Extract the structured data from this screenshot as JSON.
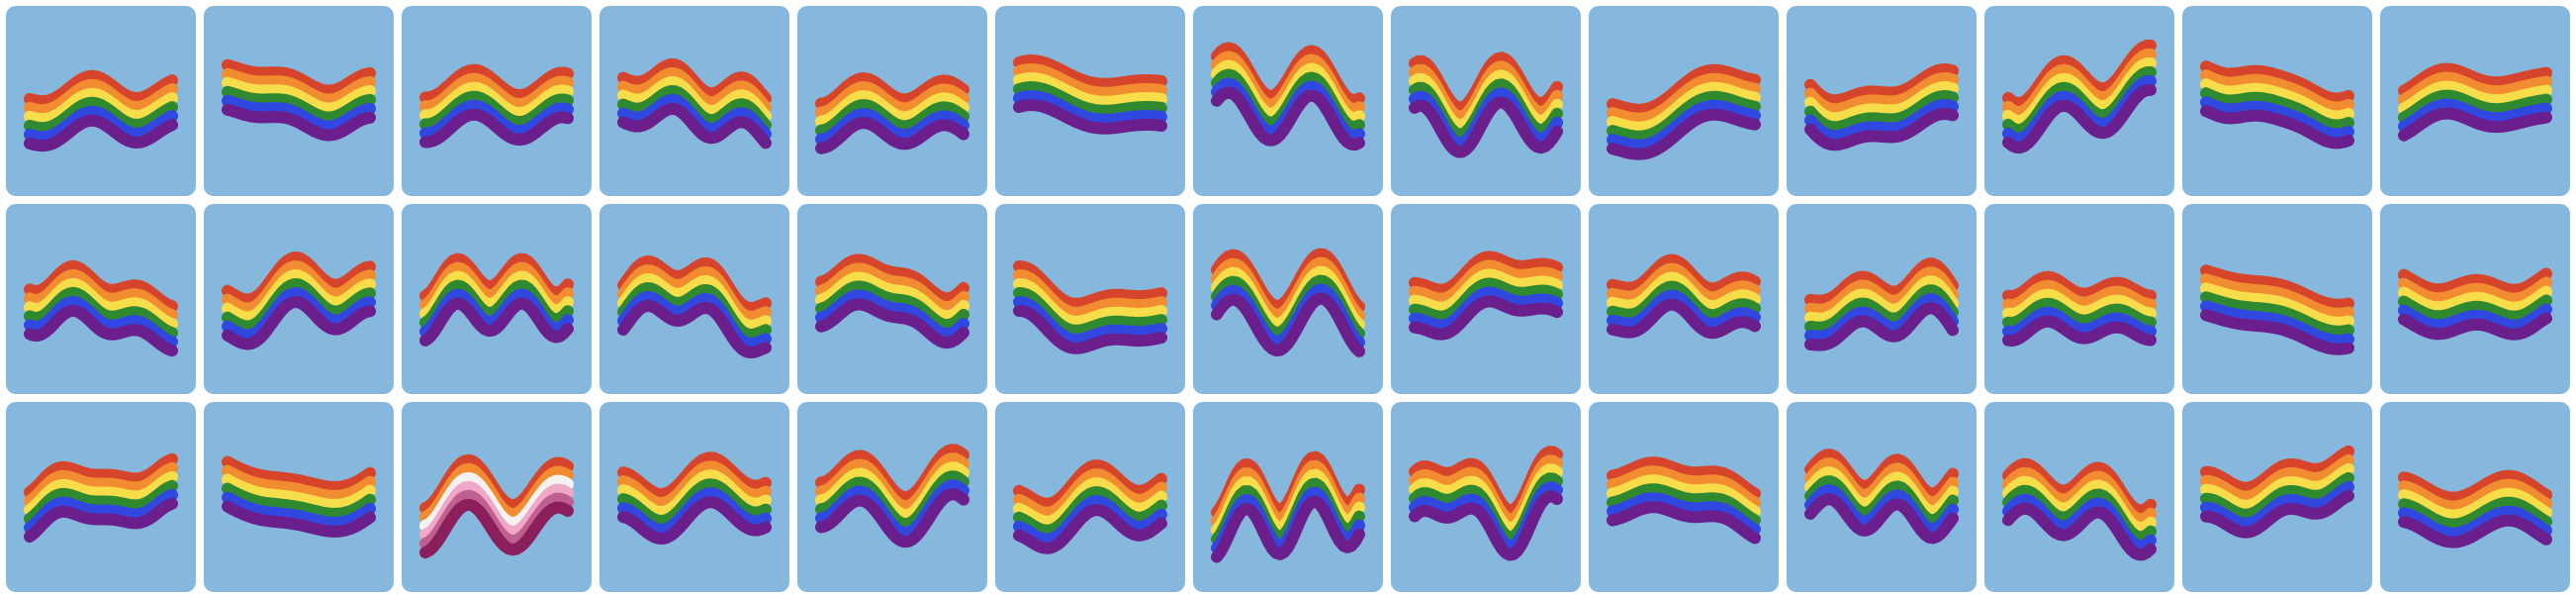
{
  "grid": {
    "rows": 3,
    "cols": 13
  },
  "colors": {
    "tile_bg": "#86b8dd",
    "page_bg": "#ffffff",
    "rainbow": [
      "#d7442c",
      "#f28c30",
      "#f8dd4a",
      "#2f8a2f",
      "#3047e0",
      "#6a1f8c"
    ],
    "pastel": [
      "#d7442c",
      "#f28c30",
      "#f7f2f2",
      "#f0a8c8",
      "#c06090",
      "#8a1f5c"
    ]
  },
  "tiles": [
    {
      "name": "wave-r1-c1",
      "seed": 11,
      "palette": "rainbow"
    },
    {
      "name": "wave-r1-c2",
      "seed": 23,
      "palette": "rainbow"
    },
    {
      "name": "wave-r1-c3",
      "seed": 37,
      "palette": "rainbow"
    },
    {
      "name": "wave-r1-c4",
      "seed": 41,
      "palette": "rainbow"
    },
    {
      "name": "wave-r1-c5",
      "seed": 53,
      "palette": "rainbow"
    },
    {
      "name": "wave-r1-c6",
      "seed": 67,
      "palette": "rainbow"
    },
    {
      "name": "wave-r1-c7",
      "seed": 71,
      "palette": "rainbow"
    },
    {
      "name": "wave-r1-c8",
      "seed": 83,
      "palette": "rainbow"
    },
    {
      "name": "wave-r1-c9",
      "seed": 97,
      "palette": "rainbow"
    },
    {
      "name": "wave-r1-c10",
      "seed": 101,
      "palette": "rainbow"
    },
    {
      "name": "wave-r1-c11",
      "seed": 113,
      "palette": "rainbow"
    },
    {
      "name": "wave-r1-c12",
      "seed": 127,
      "palette": "rainbow"
    },
    {
      "name": "wave-r1-c13",
      "seed": 131,
      "palette": "rainbow"
    },
    {
      "name": "wave-r2-c1",
      "seed": 139,
      "palette": "rainbow"
    },
    {
      "name": "wave-r2-c2",
      "seed": 149,
      "palette": "rainbow"
    },
    {
      "name": "wave-r2-c3",
      "seed": 151,
      "palette": "rainbow"
    },
    {
      "name": "wave-r2-c4",
      "seed": 163,
      "palette": "rainbow"
    },
    {
      "name": "wave-r2-c5",
      "seed": 173,
      "palette": "rainbow"
    },
    {
      "name": "wave-r2-c6",
      "seed": 181,
      "palette": "rainbow"
    },
    {
      "name": "wave-r2-c7",
      "seed": 191,
      "palette": "rainbow"
    },
    {
      "name": "wave-r2-c8",
      "seed": 199,
      "palette": "rainbow"
    },
    {
      "name": "wave-r2-c9",
      "seed": 211,
      "palette": "rainbow"
    },
    {
      "name": "wave-r2-c10",
      "seed": 223,
      "palette": "rainbow"
    },
    {
      "name": "wave-r2-c11",
      "seed": 227,
      "palette": "rainbow"
    },
    {
      "name": "wave-r2-c12",
      "seed": 229,
      "palette": "rainbow"
    },
    {
      "name": "wave-r2-c13",
      "seed": 233,
      "palette": "rainbow"
    },
    {
      "name": "wave-r3-c1",
      "seed": 239,
      "palette": "rainbow"
    },
    {
      "name": "wave-r3-c2",
      "seed": 241,
      "palette": "rainbow"
    },
    {
      "name": "wave-r3-c3",
      "seed": 251,
      "palette": "pastel"
    },
    {
      "name": "wave-r3-c4",
      "seed": 257,
      "palette": "rainbow"
    },
    {
      "name": "wave-r3-c5",
      "seed": 263,
      "palette": "rainbow"
    },
    {
      "name": "wave-r3-c6",
      "seed": 269,
      "palette": "rainbow"
    },
    {
      "name": "wave-r3-c7",
      "seed": 271,
      "palette": "rainbow"
    },
    {
      "name": "wave-r3-c8",
      "seed": 277,
      "palette": "rainbow"
    },
    {
      "name": "wave-r3-c9",
      "seed": 281,
      "palette": "rainbow"
    },
    {
      "name": "wave-r3-c10",
      "seed": 283,
      "palette": "rainbow"
    },
    {
      "name": "wave-r3-c11",
      "seed": 293,
      "palette": "rainbow"
    },
    {
      "name": "wave-r3-c12",
      "seed": 307,
      "palette": "rainbow"
    },
    {
      "name": "wave-r3-c13",
      "seed": 311,
      "palette": "rainbow"
    }
  ]
}
